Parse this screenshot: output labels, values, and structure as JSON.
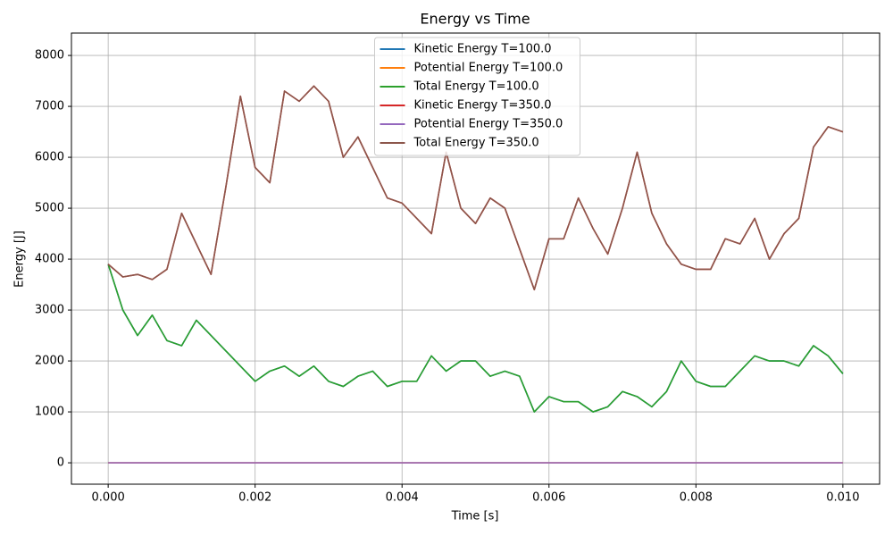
{
  "chart_data": {
    "type": "line",
    "title": "Energy vs Time",
    "xlabel": "Time [s]",
    "ylabel": "Energy [J]",
    "xlim": [
      -0.0005,
      0.0105
    ],
    "ylim": [
      -420,
      8440
    ],
    "xticks": [
      {
        "value": 0,
        "label": "0.000"
      },
      {
        "value": 0.002,
        "label": "0.002"
      },
      {
        "value": 0.004,
        "label": "0.004"
      },
      {
        "value": 0.006,
        "label": "0.006"
      },
      {
        "value": 0.008,
        "label": "0.008"
      },
      {
        "value": 0.01,
        "label": "0.010"
      }
    ],
    "yticks": [
      0,
      1000,
      2000,
      3000,
      4000,
      5000,
      6000,
      7000,
      8000
    ],
    "grid": true,
    "legend": "upper center",
    "x": [
      0,
      0.0002,
      0.0004,
      0.0006,
      0.0008,
      0.001,
      0.0012,
      0.0014,
      0.0016,
      0.0018,
      0.002,
      0.0022,
      0.0024,
      0.0026,
      0.0028,
      0.003,
      0.0032,
      0.0034,
      0.0036,
      0.0038,
      0.004,
      0.0042,
      0.0044,
      0.0046,
      0.0048,
      0.005,
      0.0052,
      0.0054,
      0.0056,
      0.0058,
      0.006,
      0.0062,
      0.0064,
      0.0066,
      0.0068,
      0.007,
      0.0072,
      0.0074,
      0.0076,
      0.0078,
      0.008,
      0.0082,
      0.0084,
      0.0086,
      0.0088,
      0.009,
      0.0092,
      0.0094,
      0.0096,
      0.0098,
      0.01
    ],
    "series": [
      {
        "name": "Kinetic Energy T=100.0",
        "color": "#1f77b4",
        "values": [
          3900,
          3000,
          2500,
          2900,
          2400,
          2300,
          2800,
          2500,
          2200,
          1900,
          1600,
          1800,
          1900,
          1700,
          1900,
          1600,
          1500,
          1700,
          1800,
          1500,
          1600,
          1600,
          2100,
          1800,
          2000,
          2000,
          1700,
          1800,
          1700,
          1000,
          1300,
          1200,
          1200,
          1000,
          1100,
          1400,
          1300,
          1100,
          1400,
          2000,
          1600,
          1500,
          1500,
          1800,
          2100,
          2000,
          2000,
          1900,
          2300,
          2100,
          1750
        ]
      },
      {
        "name": "Potential Energy T=100.0",
        "color": "#ff7f0e",
        "values": [
          0,
          0,
          0,
          0,
          0,
          0,
          0,
          0,
          0,
          0,
          0,
          0,
          0,
          0,
          0,
          0,
          0,
          0,
          0,
          0,
          0,
          0,
          0,
          0,
          0,
          0,
          0,
          0,
          0,
          0,
          0,
          0,
          0,
          0,
          0,
          0,
          0,
          0,
          0,
          0,
          0,
          0,
          0,
          0,
          0,
          0,
          0,
          0,
          0,
          0,
          0
        ]
      },
      {
        "name": "Total Energy T=100.0",
        "color": "#2ca02c",
        "values": [
          3900,
          3000,
          2500,
          2900,
          2400,
          2300,
          2800,
          2500,
          2200,
          1900,
          1600,
          1800,
          1900,
          1700,
          1900,
          1600,
          1500,
          1700,
          1800,
          1500,
          1600,
          1600,
          2100,
          1800,
          2000,
          2000,
          1700,
          1800,
          1700,
          1000,
          1300,
          1200,
          1200,
          1000,
          1100,
          1400,
          1300,
          1100,
          1400,
          2000,
          1600,
          1500,
          1500,
          1800,
          2100,
          2000,
          2000,
          1900,
          2300,
          2100,
          1750
        ]
      },
      {
        "name": "Kinetic Energy T=350.0",
        "color": "#d62728",
        "values": [
          3900,
          3650,
          3700,
          3600,
          3800,
          4900,
          4300,
          3700,
          5400,
          7200,
          5800,
          5500,
          7300,
          7100,
          7400,
          7100,
          6000,
          6400,
          5800,
          5200,
          5100,
          4800,
          4500,
          6100,
          5000,
          4700,
          5200,
          5000,
          4200,
          3400,
          4400,
          4400,
          5200,
          4600,
          4100,
          5000,
          6100,
          4900,
          4300,
          3900,
          3800,
          3800,
          4400,
          4300,
          4800,
          4000,
          4500,
          4800,
          6200,
          6600,
          6500
        ]
      },
      {
        "name": "Potential Energy T=350.0",
        "color": "#9467bd",
        "values": [
          0,
          0,
          0,
          0,
          0,
          0,
          0,
          0,
          0,
          0,
          0,
          0,
          0,
          0,
          0,
          0,
          0,
          0,
          0,
          0,
          0,
          0,
          0,
          0,
          0,
          0,
          0,
          0,
          0,
          0,
          0,
          0,
          0,
          0,
          0,
          0,
          0,
          0,
          0,
          0,
          0,
          0,
          0,
          0,
          0,
          0,
          0,
          0,
          0,
          0,
          0
        ]
      },
      {
        "name": "Total Energy T=350.0",
        "color": "#8c564b",
        "values": [
          3900,
          3650,
          3700,
          3600,
          3800,
          4900,
          4300,
          3700,
          5400,
          7200,
          5800,
          5500,
          7300,
          7100,
          7400,
          7100,
          6000,
          6400,
          5800,
          5200,
          5100,
          4800,
          4500,
          6100,
          5000,
          4700,
          5200,
          5000,
          4200,
          3400,
          4400,
          4400,
          5200,
          4600,
          4100,
          5000,
          6100,
          4900,
          4300,
          3900,
          3800,
          3800,
          4400,
          4300,
          4800,
          4000,
          4500,
          4800,
          6200,
          6600,
          6500
        ]
      }
    ]
  }
}
